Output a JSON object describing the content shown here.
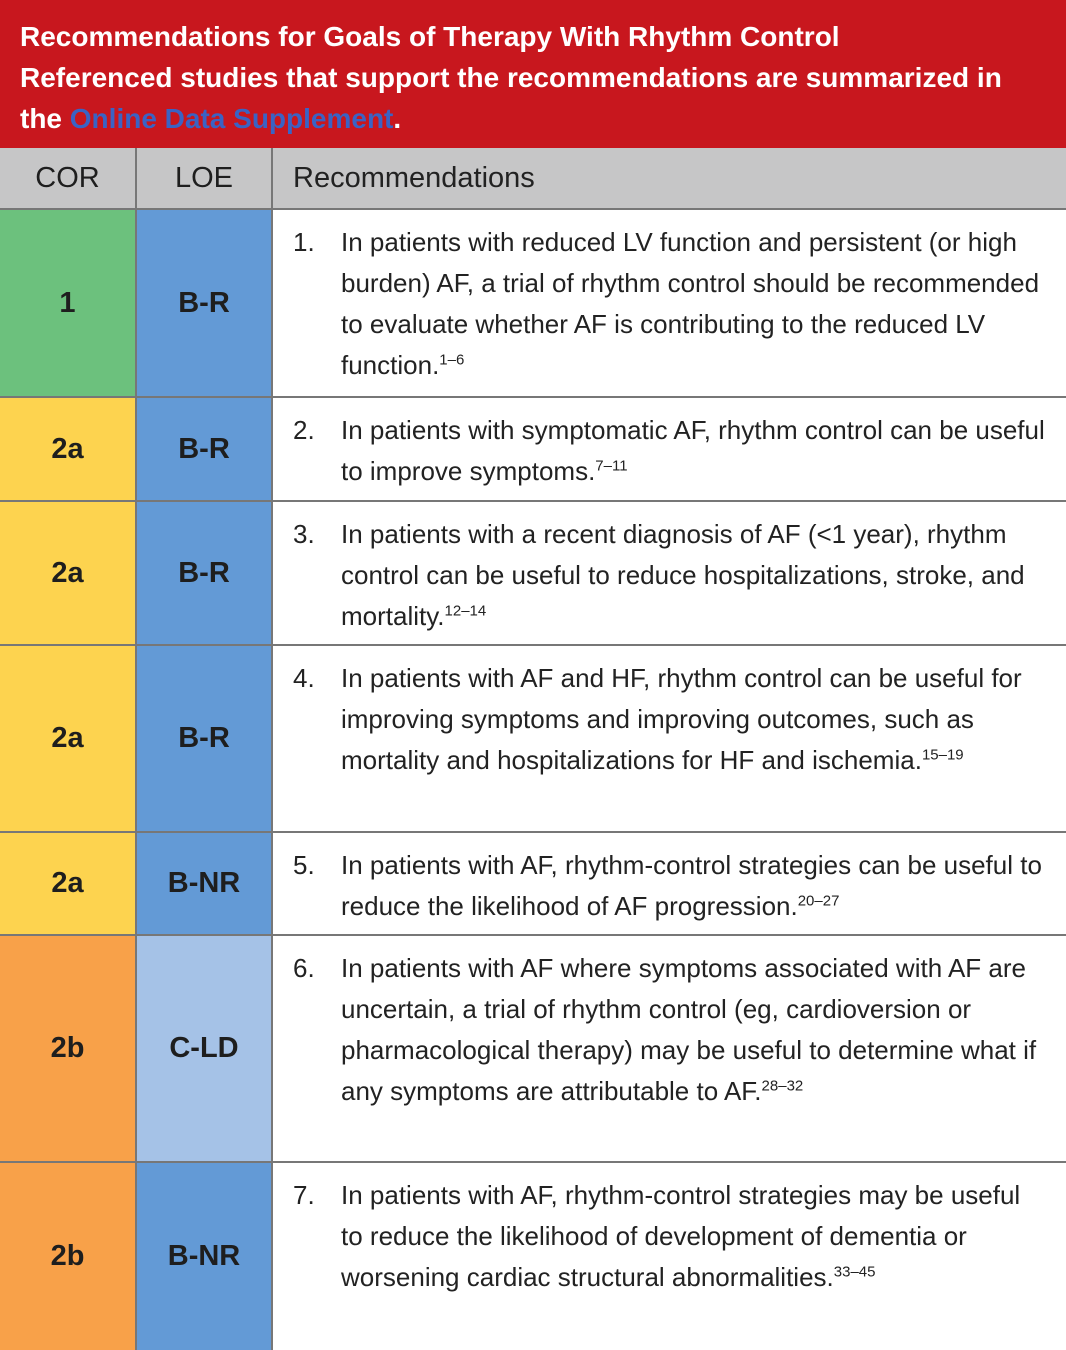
{
  "header": {
    "title": "Recommendations for Goals of Therapy With Rhythm Control",
    "subtitle": "Referenced studies that support the recommendations are summarized in the",
    "link": "Online Data Supplement",
    "end": "."
  },
  "table": {
    "columns": [
      "COR",
      "LOE",
      "Recommendations"
    ],
    "rows": [
      {
        "cor": "1",
        "loe": "B-R",
        "number": "1.",
        "text": "In patients with reduced LV function and persistent (or high burden) AF, a trial of rhythm control should be recommended to evaluate whether AF is contributing to the reduced LV function.",
        "refs": "1–6"
      },
      {
        "cor": "2a",
        "loe": "B-R",
        "number": "2.",
        "text": "In patients with symptomatic AF, rhythm control can be useful to improve symptoms.",
        "refs": "7–11"
      },
      {
        "cor": "2a",
        "loe": "B-R",
        "number": "3.",
        "text": "In patients with a recent diagnosis of AF (<1 year), rhythm control can be useful to reduce hospitalizations, stroke, and mortality.",
        "refs": "12–14"
      },
      {
        "cor": "2a",
        "loe": "B-R",
        "number": "4.",
        "text": "In patients with AF and HF, rhythm control can be useful for improving symptoms and improving outcomes, such as mortality and hospitalizations for HF and ischemia.",
        "refs": "15–19"
      },
      {
        "cor": "2a",
        "loe": "B-NR",
        "number": "5.",
        "text": "In patients with AF, rhythm-control strategies can be useful to reduce the likelihood of AF progression.",
        "refs": "20–27"
      },
      {
        "cor": "2b",
        "loe": "C-LD",
        "number": "6.",
        "text": "In patients with AF where symptoms associated with AF are uncertain, a trial of rhythm control (eg, cardioversion or pharmacological therapy) may be useful to determine what if any symptoms are attributable to AF.",
        "refs": "28–32"
      },
      {
        "cor": "2b",
        "loe": "B-NR",
        "number": "7.",
        "text": "In patients with AF, rhythm-control strategies may be useful to reduce the likelihood of development of dementia or worsening cardiac structural abnormalities.",
        "refs": "33–45"
      }
    ]
  }
}
